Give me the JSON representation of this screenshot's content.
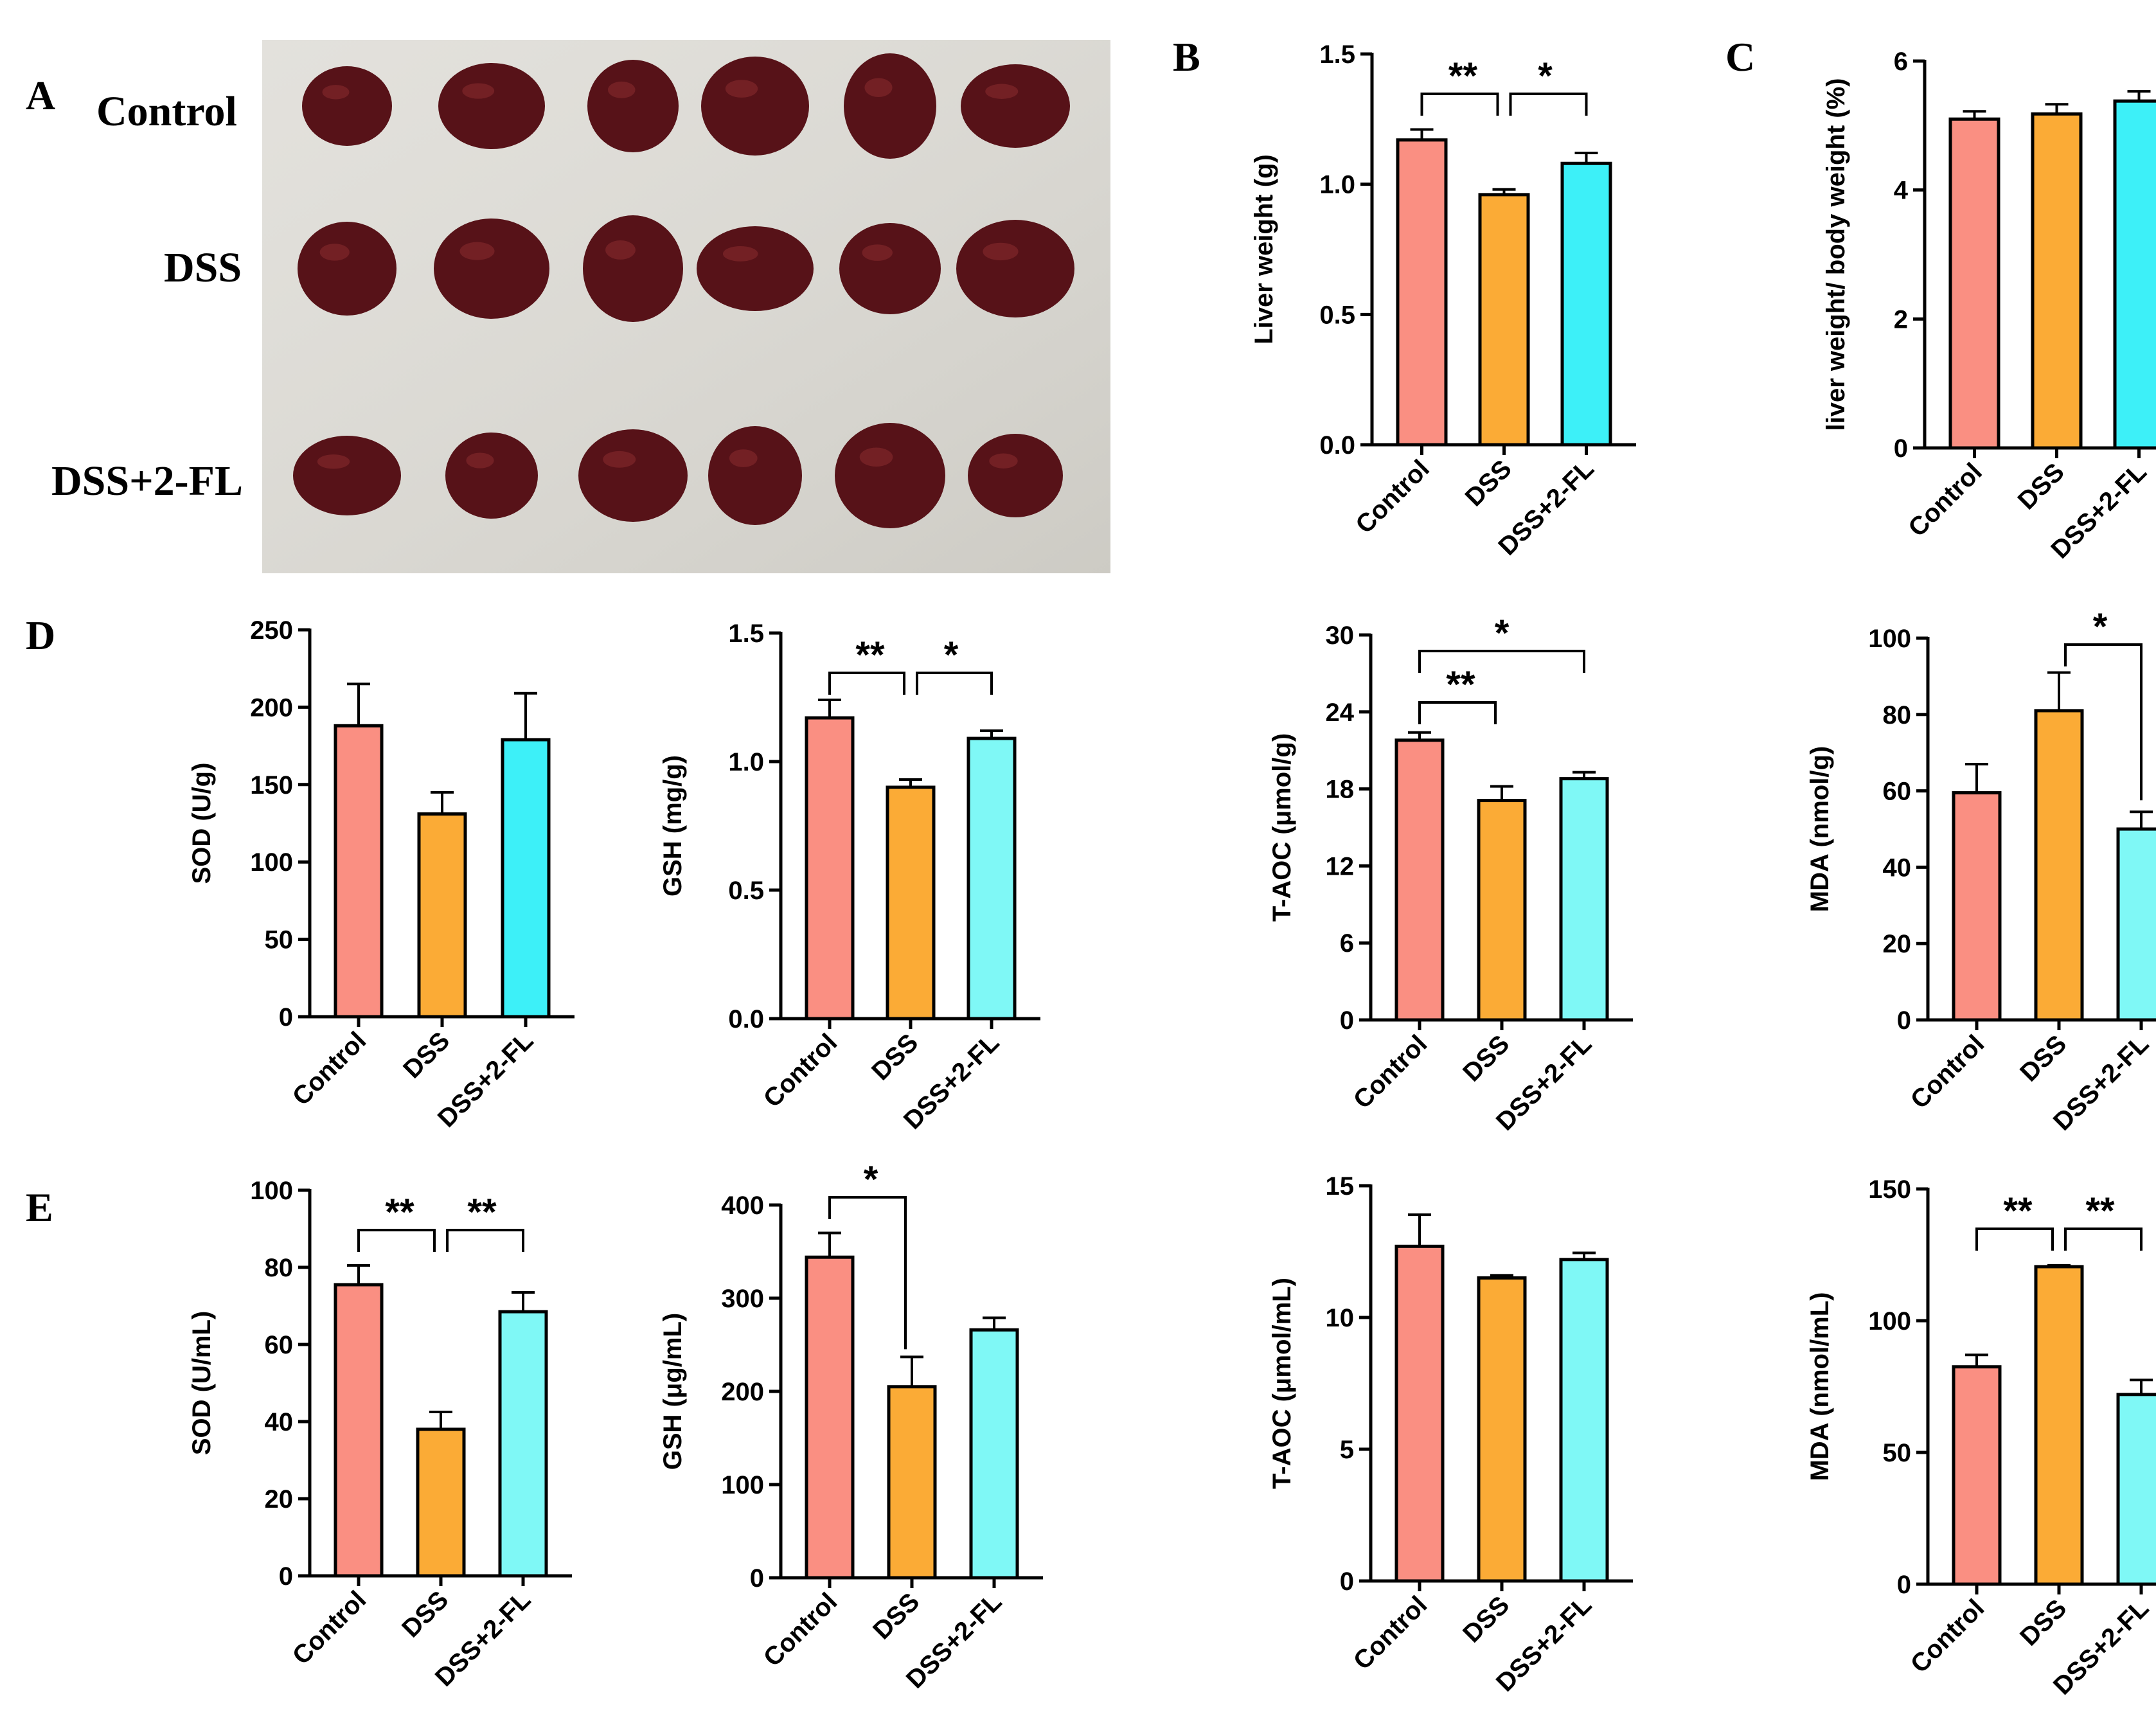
{
  "panel_labels": {
    "A": "A",
    "B": "B",
    "C": "C",
    "D": "D",
    "E": "E"
  },
  "photo": {
    "row_labels": [
      "Control",
      "DSS",
      "DSS+2-FL"
    ]
  },
  "colors": {
    "Control": "#fa8f82",
    "DSS": "#fbab36",
    "DSS+2-FL": "#3df0f8",
    "DSS+2-FL-light": "#7ff8f6",
    "photo_bg": "#dedcd6",
    "liver": "#571218"
  },
  "chart_data": [
    {
      "id": "B",
      "type": "bar",
      "categories": [
        "Control",
        "DSS",
        "DSS+2-FL"
      ],
      "values": [
        1.17,
        0.96,
        1.08
      ],
      "errors": [
        0.04,
        0.02,
        0.04
      ],
      "ylabel": "Liver weight (g)",
      "ylim": [
        0,
        1.5
      ],
      "ticks": [
        "0.0",
        "0.5",
        "1.0",
        "1.5"
      ],
      "third_color": "DSS+2-FL",
      "sig": [
        {
          "from": 0,
          "to": 1,
          "label": "**"
        },
        {
          "from": 1,
          "to": 2,
          "label": "*"
        }
      ]
    },
    {
      "id": "C",
      "type": "bar",
      "categories": [
        "Control",
        "DSS",
        "DSS+2-FL"
      ],
      "values": [
        5.1,
        5.18,
        5.38
      ],
      "errors": [
        0.12,
        0.15,
        0.15
      ],
      "ylabel": "liver weight/ body weight (%)",
      "ylim": [
        0,
        6
      ],
      "ticks": [
        "0",
        "2",
        "4",
        "6"
      ],
      "third_color": "DSS+2-FL",
      "sig": []
    },
    {
      "id": "D-SOD",
      "type": "bar",
      "categories": [
        "Control",
        "DSS",
        "DSS+2-FL"
      ],
      "values": [
        188,
        131,
        179
      ],
      "errors": [
        27,
        14,
        30
      ],
      "ylabel": "SOD (U/g)",
      "ylim": [
        0,
        250
      ],
      "ticks": [
        "0",
        "50",
        "100",
        "150",
        "200",
        "250"
      ],
      "third_color": "DSS+2-FL",
      "sig": []
    },
    {
      "id": "D-GSH",
      "type": "bar",
      "categories": [
        "Control",
        "DSS",
        "DSS+2-FL"
      ],
      "values": [
        1.17,
        0.9,
        1.09
      ],
      "errors": [
        0.07,
        0.03,
        0.03
      ],
      "ylabel": "GSH (mg/g)",
      "ylim": [
        0,
        1.5
      ],
      "ticks": [
        "0.0",
        "0.5",
        "1.0",
        "1.5"
      ],
      "third_color": "DSS+2-FL-light",
      "sig": [
        {
          "from": 0,
          "to": 1,
          "label": "**"
        },
        {
          "from": 1,
          "to": 2,
          "label": "*"
        }
      ]
    },
    {
      "id": "D-TAOC",
      "type": "bar",
      "categories": [
        "Control",
        "DSS",
        "DSS+2-FL"
      ],
      "values": [
        21.8,
        17.1,
        18.8
      ],
      "errors": [
        0.6,
        1.1,
        0.5
      ],
      "ylabel": "T-AOC (μmol/g)",
      "ylim": [
        0,
        30
      ],
      "ticks": [
        "0",
        "6",
        "12",
        "18",
        "24",
        "30"
      ],
      "third_color": "DSS+2-FL-light",
      "sig": [
        {
          "from": 0,
          "to": 1,
          "label": "**",
          "level": 0
        },
        {
          "from": 0,
          "to": 2,
          "label": "*",
          "level": 1
        }
      ]
    },
    {
      "id": "D-MDA",
      "type": "bar",
      "categories": [
        "Control",
        "DSS",
        "DSS+2-FL"
      ],
      "values": [
        59.5,
        81.0,
        50.0
      ],
      "errors": [
        7.5,
        10.0,
        4.5
      ],
      "ylabel": "MDA (nmol/g)",
      "ylim": [
        0,
        100
      ],
      "ticks": [
        "0",
        "20",
        "40",
        "60",
        "80",
        "100"
      ],
      "third_color": "DSS+2-FL-light",
      "sig": [
        {
          "from": 1,
          "to": 2,
          "label": "*"
        }
      ]
    },
    {
      "id": "E-SOD",
      "type": "bar",
      "categories": [
        "Control",
        "DSS",
        "DSS+2-FL"
      ],
      "values": [
        75.5,
        38.0,
        68.5
      ],
      "errors": [
        5.0,
        4.5,
        5.0
      ],
      "ylabel": "SOD (U/mL)",
      "ylim": [
        0,
        100
      ],
      "ticks": [
        "0",
        "20",
        "40",
        "60",
        "80",
        "100"
      ],
      "third_color": "DSS+2-FL-light",
      "sig": [
        {
          "from": 0,
          "to": 1,
          "label": "**"
        },
        {
          "from": 1,
          "to": 2,
          "label": "**"
        }
      ]
    },
    {
      "id": "E-GSH",
      "type": "bar",
      "categories": [
        "Control",
        "DSS",
        "DSS+2-FL"
      ],
      "values": [
        344,
        205,
        266
      ],
      "errors": [
        26,
        32,
        13
      ],
      "ylabel": "GSH (μg/mL)",
      "ylim": [
        0,
        400
      ],
      "ticks": [
        "0",
        "100",
        "200",
        "300",
        "400"
      ],
      "third_color": "DSS+2-FL-light",
      "sig": [
        {
          "from": 0,
          "to": 1,
          "label": "*",
          "open": true
        }
      ]
    },
    {
      "id": "E-TAOC",
      "type": "bar",
      "categories": [
        "Control",
        "DSS",
        "DSS+2-FL"
      ],
      "values": [
        12.7,
        11.5,
        12.2
      ],
      "errors": [
        1.2,
        0.1,
        0.25
      ],
      "ylabel": "T-AOC (μmol/mL)",
      "ylim": [
        0,
        15
      ],
      "ticks": [
        "0",
        "5",
        "10",
        "15"
      ],
      "third_color": "DSS+2-FL-light",
      "sig": []
    },
    {
      "id": "E-MDA",
      "type": "bar",
      "categories": [
        "Control",
        "DSS",
        "DSS+2-FL"
      ],
      "values": [
        82.5,
        120.5,
        72.0
      ],
      "errors": [
        4.5,
        0.5,
        5.5
      ],
      "ylabel": "MDA (nmol/mL)",
      "ylim": [
        0,
        150
      ],
      "ticks": [
        "0",
        "50",
        "100",
        "150"
      ],
      "third_color": "DSS+2-FL-light",
      "sig": [
        {
          "from": 0,
          "to": 1,
          "label": "**"
        },
        {
          "from": 1,
          "to": 2,
          "label": "**"
        }
      ]
    }
  ]
}
